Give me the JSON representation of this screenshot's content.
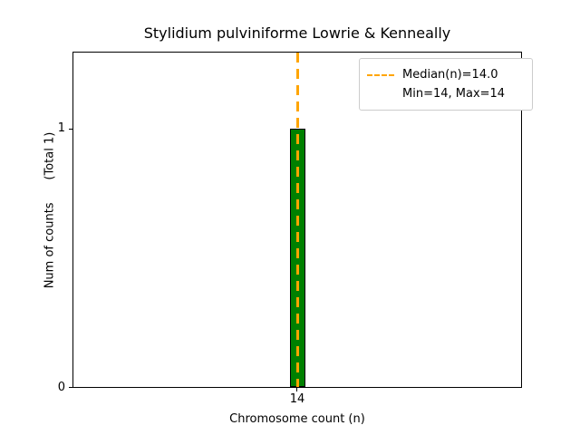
{
  "title": "Stylidium pulviniforme Lowrie & Kenneally",
  "axes": {
    "xlabel": "Chromosome count (n)",
    "ylabel": "Num of counts      (Total 1)",
    "x_ticks": {
      "t14": "14"
    },
    "y_ticks": {
      "t0": "0",
      "t1": "1"
    }
  },
  "legend": {
    "line1": "Median(n)=14.0",
    "line2": "Min=14, Max=14"
  },
  "colors": {
    "bar_fill": "#008000",
    "bar_edge": "#000000",
    "median_line": "#ffa500"
  },
  "chart_data": {
    "type": "bar",
    "categories": [
      14
    ],
    "values": [
      1
    ],
    "title": "Stylidium pulviniforme Lowrie & Kenneally",
    "xlabel": "Chromosome count (n)",
    "ylabel": "Num of counts (Total 1)",
    "ylim": [
      0,
      1.3
    ],
    "y_tick_values": [
      0,
      1
    ],
    "total_counts": 1,
    "median": 14.0,
    "min": 14,
    "max": 14,
    "median_line": {
      "x": 14,
      "style": "dashed",
      "color": "#ffa500"
    },
    "legend_entries": [
      "Median(n)=14.0",
      "Min=14, Max=14"
    ],
    "legend_position": "upper right",
    "grid": false
  }
}
